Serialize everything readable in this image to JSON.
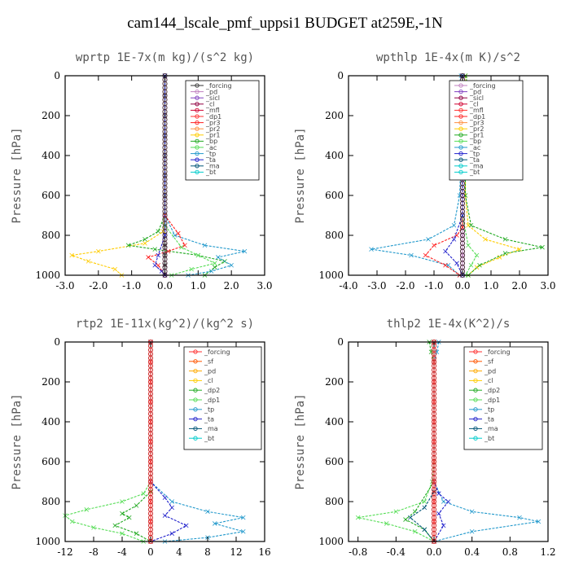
{
  "title": "cam144_lscale_pmf_uppsi1  BUDGET at259E,-1N",
  "chart_data": [
    {
      "type": "line",
      "title": "wprtp   1E-7x(m kg)/(s^2 kg)",
      "ylabel": "Pressure [hPa]",
      "xlim": [
        -3.0,
        3.0
      ],
      "ylim": [
        1000,
        0
      ],
      "xticks": [
        "-3.0",
        "-2.0",
        "-1.0",
        "0.0",
        "1.0",
        "2.0",
        "3.0"
      ],
      "yticks": [
        "0",
        "200",
        "400",
        "600",
        "800",
        "1000"
      ],
      "legend": [
        "_forcing",
        "_pd",
        "_sicl",
        "_cl",
        "_mfl",
        "_dp1",
        "_pr3",
        "_pr2",
        "_pr1",
        "_bp",
        "_ac",
        "_tp",
        "_ta",
        "_ma",
        "_bt"
      ],
      "legend_colors": [
        "#333333",
        "#c080c0",
        "#8040c0",
        "#900040",
        "#d00030",
        "#ff3030",
        "#ff2020",
        "#ff9040",
        "#ffcc00",
        "#22aa22",
        "#55dd55",
        "#2299cc",
        "#2222cc",
        "#005577",
        "#00cccc"
      ],
      "series": [
        {
          "name": "_forcing",
          "color": "#333333",
          "x": [
            0,
            0,
            0,
            0,
            0,
            0,
            0,
            0,
            0,
            0,
            0,
            0,
            0
          ],
          "y": [
            0,
            100,
            200,
            300,
            400,
            500,
            600,
            700,
            800,
            850,
            900,
            950,
            1000
          ]
        },
        {
          "name": "_pr1",
          "color": "#ffcc00",
          "x": [
            0,
            0,
            -0.05,
            -0.6,
            -2.0,
            -2.8,
            -2.3,
            -1.5,
            -1.3
          ],
          "y": [
            0,
            700,
            780,
            840,
            880,
            900,
            930,
            970,
            1000
          ]
        },
        {
          "name": "_bp",
          "color": "#22aa22",
          "x": [
            0,
            0,
            -0.2,
            -0.6,
            -1.1,
            -0.3,
            1.0,
            1.8,
            1.5,
            1.2
          ],
          "y": [
            0,
            700,
            780,
            820,
            850,
            870,
            900,
            930,
            960,
            1000
          ]
        },
        {
          "name": "_tp",
          "color": "#2299cc",
          "x": [
            0,
            0,
            0.3,
            1.2,
            2.4,
            1.6,
            2.0,
            1.4,
            0.7
          ],
          "y": [
            0,
            700,
            800,
            850,
            880,
            910,
            950,
            980,
            1000
          ]
        },
        {
          "name": "_pr3",
          "color": "#ff2020",
          "x": [
            0,
            0,
            0.4,
            0.6,
            0.1,
            -0.5,
            -0.2,
            0
          ],
          "y": [
            0,
            700,
            790,
            850,
            880,
            910,
            950,
            1000
          ]
        },
        {
          "name": "_ac",
          "color": "#55dd55",
          "x": [
            0,
            0,
            0.5,
            1.0,
            1.5,
            0.8,
            0.2
          ],
          "y": [
            0,
            750,
            860,
            900,
            940,
            970,
            1000
          ]
        },
        {
          "name": "_ta",
          "color": "#2222cc",
          "x": [
            0,
            0,
            -0.2,
            -0.3,
            -0.1,
            0
          ],
          "y": [
            0,
            800,
            900,
            950,
            980,
            1000
          ]
        }
      ]
    },
    {
      "type": "line",
      "title": "wpthlp   1E-4x(m K)/s^2",
      "ylabel": "Pressure [hPa]",
      "xlim": [
        -4.0,
        3.0
      ],
      "ylim": [
        1000,
        0
      ],
      "xticks": [
        "-4.0",
        "-3.0",
        "-2.0",
        "-1.0",
        "0.0",
        "1.0",
        "2.0",
        "3.0"
      ],
      "yticks": [
        "0",
        "200",
        "400",
        "600",
        "800",
        "1000"
      ],
      "legend": [
        "_forcing",
        "_pd",
        "_sicl",
        "_cl",
        "_mfl",
        "_dp1",
        "_pr3",
        "_pr2",
        "_pr1",
        "_bp",
        "_ac",
        "_tp",
        "_ta",
        "_ma",
        "_bt"
      ],
      "legend_colors": [
        "#c080c0",
        "#8040c0",
        "#900040",
        "#d00030",
        "#ff3030",
        "#ff2020",
        "#ff9040",
        "#ffcc00",
        "#22aa22",
        "#55dd55",
        "#2299cc",
        "#2222cc",
        "#005577",
        "#00cccc",
        "#00cccc"
      ],
      "series": [
        {
          "name": "_forcing",
          "color": "#c080c0",
          "x": [
            0,
            0,
            0,
            0,
            0,
            0,
            0,
            0,
            0,
            0,
            0
          ],
          "y": [
            0,
            100,
            200,
            300,
            400,
            500,
            600,
            700,
            800,
            900,
            1000
          ]
        },
        {
          "name": "_pr1",
          "color": "#ffcc00",
          "x": [
            0.1,
            0.15,
            0.2,
            0.15,
            0.1,
            0.1,
            0.2,
            0.8,
            2.0,
            1.3,
            0.5,
            0.2
          ],
          "y": [
            0,
            100,
            200,
            300,
            400,
            600,
            750,
            820,
            870,
            910,
            960,
            1000
          ]
        },
        {
          "name": "_bp",
          "color": "#22aa22",
          "x": [
            0.1,
            0.3,
            0.2,
            0.3,
            0.1,
            0.1,
            0.3,
            1.5,
            2.8,
            1.5,
            0.6,
            0.2
          ],
          "y": [
            0,
            100,
            200,
            300,
            400,
            600,
            750,
            820,
            860,
            890,
            950,
            1000
          ]
        },
        {
          "name": "_tp",
          "color": "#2299cc",
          "x": [
            -0.05,
            -0.2,
            -0.25,
            -0.1,
            -0.05,
            -0.1,
            -0.3,
            -1.2,
            -3.2,
            -1.8,
            -0.5,
            -0.1
          ],
          "y": [
            0,
            100,
            200,
            300,
            400,
            600,
            750,
            820,
            870,
            900,
            950,
            1000
          ]
        },
        {
          "name": "_pr3",
          "color": "#ff2020",
          "x": [
            0,
            0,
            0,
            -0.2,
            -1.0,
            -1.3,
            -0.6,
            -0.1
          ],
          "y": [
            0,
            500,
            760,
            800,
            850,
            900,
            950,
            1000
          ]
        },
        {
          "name": "_ac",
          "color": "#55dd55",
          "x": [
            0,
            0,
            0.2,
            0.5,
            0.3,
            0.1
          ],
          "y": [
            0,
            700,
            850,
            900,
            950,
            1000
          ]
        },
        {
          "name": "_ta",
          "color": "#2222cc",
          "x": [
            0,
            0,
            -0.3,
            -0.6,
            -0.2,
            0
          ],
          "y": [
            0,
            700,
            820,
            880,
            940,
            1000
          ]
        }
      ]
    },
    {
      "type": "line",
      "title": "rtp2   1E-11x(kg^2)/(kg^2 s)",
      "ylabel": "Pressure [hPa]",
      "xlim": [
        -12,
        16
      ],
      "ylim": [
        1000,
        0
      ],
      "xticks": [
        "-12",
        "-8",
        "-4",
        "0",
        "4",
        "8",
        "12",
        "16"
      ],
      "yticks": [
        "0",
        "200",
        "400",
        "600",
        "800",
        "1000"
      ],
      "legend": [
        "_forcing",
        "_sf",
        "_pd",
        "_cl",
        "_dp2",
        "_dp1",
        "_tp",
        "_ta",
        "_ma",
        "_bt"
      ],
      "legend_colors": [
        "#ff3030",
        "#ff5500",
        "#ffaa00",
        "#ffcc00",
        "#22aa22",
        "#55dd55",
        "#2299cc",
        "#2222cc",
        "#005577",
        "#00cccc"
      ],
      "series": [
        {
          "name": "_dp1",
          "color": "#55dd55",
          "x": [
            0,
            0,
            -1,
            -4,
            -9,
            -12,
            -11,
            -8,
            -4,
            -1
          ],
          "y": [
            0,
            700,
            760,
            800,
            840,
            870,
            900,
            930,
            960,
            1000
          ]
        },
        {
          "name": "_dp2",
          "color": "#22aa22",
          "x": [
            0,
            0,
            -2,
            -4,
            -3,
            -5,
            -2,
            0
          ],
          "y": [
            0,
            750,
            820,
            860,
            880,
            920,
            960,
            1000
          ]
        },
        {
          "name": "_tp",
          "color": "#2299cc",
          "x": [
            0,
            0,
            3,
            8,
            13,
            9,
            13,
            8,
            2
          ],
          "y": [
            0,
            700,
            800,
            850,
            880,
            910,
            950,
            980,
            1000
          ]
        },
        {
          "name": "_ta",
          "color": "#2222cc",
          "x": [
            0,
            0,
            2,
            3,
            2,
            5,
            3,
            0
          ],
          "y": [
            0,
            700,
            780,
            830,
            870,
            920,
            960,
            1000
          ]
        },
        {
          "name": "_forcing",
          "color": "#ff3030",
          "x": [
            0,
            0,
            0,
            0,
            0,
            0,
            0,
            0,
            0,
            0,
            0
          ],
          "y": [
            0,
            100,
            200,
            300,
            400,
            500,
            600,
            700,
            800,
            900,
            1000
          ]
        }
      ]
    },
    {
      "type": "line",
      "title": "thlp2   1E-4x(K^2)/s",
      "ylabel": "Pressure [hPa]",
      "xlim": [
        -0.9,
        1.2
      ],
      "ylim": [
        1000,
        0
      ],
      "xticks": [
        "-0.8",
        "-0.4",
        "0.0",
        "0.4",
        "0.8",
        "1.2"
      ],
      "yticks": [
        "0",
        "200",
        "400",
        "600",
        "800",
        "1000"
      ],
      "legend": [
        "_forcing",
        "_sf",
        "_pd",
        "_cl",
        "_dp2",
        "_dp1",
        "_tp",
        "_ta",
        "_ma",
        "_bt"
      ],
      "legend_colors": [
        "#ff3030",
        "#ff5500",
        "#ffaa00",
        "#ffcc00",
        "#22aa22",
        "#55dd55",
        "#2299cc",
        "#2222cc",
        "#005577",
        "#00cccc"
      ],
      "series": [
        {
          "name": "_dp1",
          "color": "#55dd55",
          "x": [
            0,
            0,
            -0.02,
            -0.1,
            -0.4,
            -0.8,
            -0.5,
            -0.2,
            0
          ],
          "y": [
            0,
            600,
            700,
            800,
            850,
            880,
            910,
            950,
            1000
          ]
        },
        {
          "name": "_dp2",
          "color": "#22aa22",
          "x": [
            -0.05,
            -0.03,
            0,
            0,
            -0.2,
            -0.3,
            -0.1,
            0
          ],
          "y": [
            0,
            50,
            100,
            700,
            850,
            890,
            940,
            1000
          ]
        },
        {
          "name": "_tp",
          "color": "#2299cc",
          "x": [
            0.05,
            0.03,
            0,
            0,
            0.1,
            0.4,
            0.9,
            1.1,
            0.4,
            0
          ],
          "y": [
            0,
            50,
            100,
            700,
            800,
            850,
            880,
            900,
            950,
            1000
          ]
        },
        {
          "name": "_ta",
          "color": "#2222cc",
          "x": [
            0,
            0,
            0.05,
            0.15,
            0.05,
            0.1,
            0
          ],
          "y": [
            0,
            700,
            760,
            800,
            860,
            920,
            1000
          ]
        },
        {
          "name": "_ma",
          "color": "#005577",
          "x": [
            0,
            0,
            -0.1,
            -0.25,
            -0.1,
            0
          ],
          "y": [
            0,
            750,
            830,
            880,
            940,
            1000
          ]
        },
        {
          "name": "_forcing",
          "color": "#ff3030",
          "x": [
            0,
            0,
            0,
            0,
            0,
            0,
            0,
            0,
            0,
            0,
            0
          ],
          "y": [
            0,
            100,
            200,
            300,
            400,
            500,
            600,
            700,
            800,
            900,
            1000
          ]
        }
      ]
    }
  ]
}
